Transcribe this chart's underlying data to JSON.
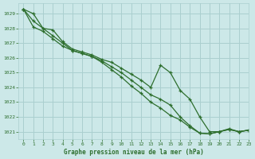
{
  "title": "Graphe pression niveau de la mer (hPa)",
  "background_color": "#cce8e8",
  "grid_color": "#aacfcf",
  "line_color": "#2d6e2d",
  "xlim": [
    -0.5,
    23
  ],
  "ylim": [
    1020.5,
    1029.7
  ],
  "yticks": [
    1021,
    1022,
    1023,
    1024,
    1025,
    1026,
    1027,
    1028,
    1029
  ],
  "xticks": [
    0,
    1,
    2,
    3,
    4,
    5,
    6,
    7,
    8,
    9,
    10,
    11,
    12,
    13,
    14,
    15,
    16,
    17,
    18,
    19,
    20,
    21,
    22,
    23
  ],
  "series1": [
    1029.3,
    1029.0,
    1028.0,
    1027.9,
    1027.1,
    1026.6,
    1026.4,
    1026.2,
    1025.9,
    1025.7,
    1025.3,
    1024.9,
    1024.5,
    1024.0,
    1025.5,
    1025.0,
    1023.8,
    1023.2,
    1022.0,
    1021.0,
    1021.0,
    1021.2,
    1021.0,
    1021.1
  ],
  "series2": [
    1029.3,
    1028.5,
    1028.0,
    1027.5,
    1027.0,
    1026.5,
    1026.3,
    1026.1,
    1025.8,
    1025.4,
    1025.0,
    1024.5,
    1024.0,
    1023.5,
    1023.2,
    1022.8,
    1022.0,
    1021.4,
    1020.9,
    1020.85,
    1021.0,
    1021.15,
    1021.0,
    1021.1
  ],
  "series3": [
    1029.3,
    1028.1,
    1027.8,
    1027.3,
    1026.8,
    1026.5,
    1026.3,
    1026.1,
    1025.7,
    1025.2,
    1024.7,
    1024.1,
    1023.6,
    1023.0,
    1022.6,
    1022.1,
    1021.8,
    1021.3,
    1020.9,
    1020.85,
    1021.0,
    1021.15,
    1021.0,
    1021.1
  ]
}
